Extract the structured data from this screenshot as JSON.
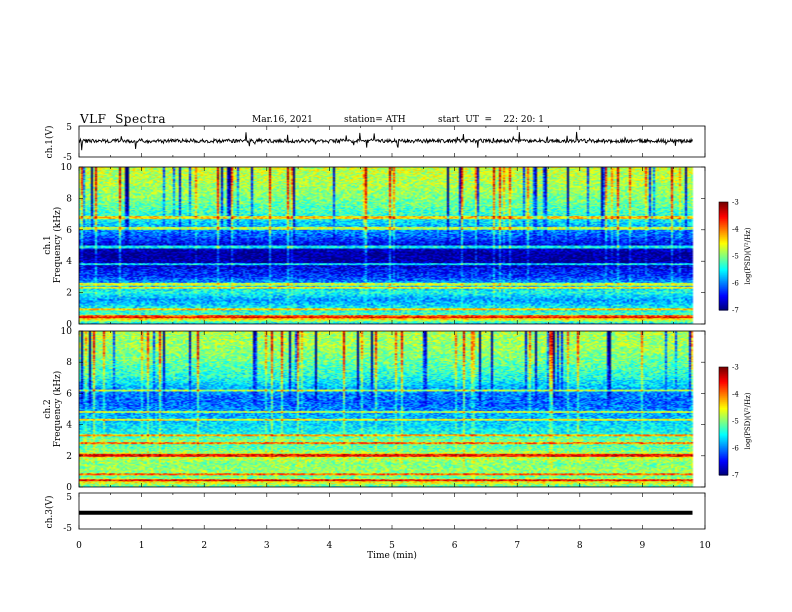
{
  "header": {
    "title": "VLF  Spectra",
    "date": "Mar.16, 2021",
    "station": "station= ATH",
    "start": "start  UT  =    22: 20: 1"
  },
  "colors": {
    "jet": [
      "#000080",
      "#0000ff",
      "#0080ff",
      "#00ffff",
      "#80ff80",
      "#ffff00",
      "#ff8000",
      "#ff0000",
      "#800000"
    ],
    "background": "#ffffff",
    "axis": "#000000"
  },
  "chart_data": [
    {
      "type": "line",
      "panel": "ch1-waveform",
      "ylabel": "ch.1(V)",
      "ylim": [
        -5,
        5
      ],
      "yticks": [
        "5",
        "-5"
      ],
      "xlim": [
        0,
        10
      ],
      "x_extent_min": 9.8,
      "baseline_v": 0.2,
      "noise_amplitude_v": 0.6,
      "spike_amplitude_v": 2.5
    },
    {
      "type": "heatmap",
      "panel": "ch1-spectrogram",
      "ylabel": "ch.1\nFrequency  (kHz)",
      "ylim": [
        0,
        10
      ],
      "yticks": [
        "0",
        "2",
        "4",
        "6",
        "8",
        "10"
      ],
      "xlim": [
        0,
        10
      ],
      "x_extent_min": 9.8,
      "colorbar": {
        "label": "log(PSD)(V²/Hz)",
        "range": [
          -7,
          -3
        ],
        "ticks": [
          "-3",
          "-4",
          "-5",
          "-6",
          "-7"
        ]
      },
      "freq_profile_khz_logpsd": [
        [
          0,
          -5.6
        ],
        [
          0.3,
          -4.3
        ],
        [
          0.6,
          -5.3
        ],
        [
          1.0,
          -5.5
        ],
        [
          1.5,
          -5.9
        ],
        [
          2.0,
          -5.4
        ],
        [
          2.5,
          -5.8
        ],
        [
          3.0,
          -6.3
        ],
        [
          3.5,
          -6.5
        ],
        [
          4.0,
          -6.9
        ],
        [
          4.5,
          -6.9
        ],
        [
          5.0,
          -6.6
        ],
        [
          5.5,
          -6.2
        ],
        [
          6.0,
          -5.9
        ],
        [
          6.5,
          -5.6
        ],
        [
          7.0,
          -5.3
        ],
        [
          8.0,
          -5.0
        ],
        [
          9.0,
          -4.8
        ],
        [
          10.0,
          -4.7
        ]
      ],
      "lines_khz": [
        0.45,
        0.9,
        2.3,
        2.5,
        3.8,
        4.9,
        6.1,
        6.8
      ]
    },
    {
      "type": "heatmap",
      "panel": "ch2-spectrogram",
      "ylabel": "ch.2\nFrequency  (kHz)",
      "ylim": [
        0,
        10
      ],
      "yticks": [
        "0",
        "2",
        "4",
        "6",
        "8",
        "10"
      ],
      "xlim": [
        0,
        10
      ],
      "x_extent_min": 9.8,
      "colorbar": {
        "label": "log(PSD)(V²/Hz)",
        "range": [
          -7,
          -3
        ],
        "ticks": [
          "-3",
          "-4",
          "-5",
          "-6",
          "-7"
        ]
      },
      "freq_profile_khz_logpsd": [
        [
          0,
          -5.2
        ],
        [
          0.3,
          -4.4
        ],
        [
          0.6,
          -5.1
        ],
        [
          1.0,
          -4.9
        ],
        [
          1.5,
          -5.0
        ],
        [
          2.0,
          -4.6
        ],
        [
          2.5,
          -5.2
        ],
        [
          3.0,
          -5.0
        ],
        [
          3.5,
          -5.5
        ],
        [
          4.0,
          -5.6
        ],
        [
          4.5,
          -5.8
        ],
        [
          5.0,
          -6.0
        ],
        [
          5.5,
          -6.1
        ],
        [
          6.0,
          -6.0
        ],
        [
          6.5,
          -5.7
        ],
        [
          7.0,
          -5.4
        ],
        [
          8.0,
          -5.1
        ],
        [
          9.0,
          -4.9
        ],
        [
          10.0,
          -4.8
        ]
      ],
      "lines_khz": [
        0.4,
        0.8,
        2.0,
        2.8,
        3.3,
        4.3,
        4.8,
        6.2
      ]
    },
    {
      "type": "line",
      "panel": "ch3-waveform",
      "ylabel": "ch.3(V)",
      "ylim": [
        -5,
        5
      ],
      "yticks": [
        "5",
        "-5"
      ],
      "xlim": [
        0,
        10
      ],
      "x_extent_min": 9.8,
      "baseline_v": -0.5,
      "xlabel": "Time  (min)",
      "xticks": [
        "0",
        "1",
        "2",
        "3",
        "4",
        "5",
        "6",
        "7",
        "8",
        "9",
        "10"
      ]
    }
  ]
}
